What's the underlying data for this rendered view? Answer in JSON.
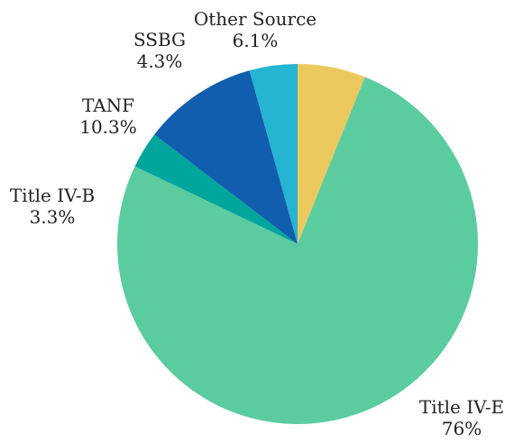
{
  "chart_data": {
    "type": "pie",
    "title": "",
    "slices": [
      {
        "label": "Other Source",
        "value_label": "6.1%",
        "value": 6.1,
        "color": "#ECC95F"
      },
      {
        "label": "Title IV-E",
        "value_label": "76%",
        "value": 76,
        "color": "#5BCC9F"
      },
      {
        "label": "Title IV-B",
        "value_label": "3.3%",
        "value": 3.3,
        "color": "#00A59C"
      },
      {
        "label": "TANF",
        "value_label": "10.3%",
        "value": 10.3,
        "color": "#105EAD"
      },
      {
        "label": "SSBG",
        "value_label": "4.3%",
        "value": 4.3,
        "color": "#25B4D1"
      }
    ],
    "start_angle_deg": 0,
    "direction": "clockwise",
    "legend": "none"
  }
}
